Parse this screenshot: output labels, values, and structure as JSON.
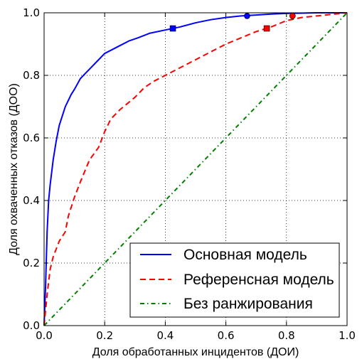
{
  "chart_data": {
    "type": "line",
    "xlabel": "Доля обработанных инцидентов (ДОИ)",
    "ylabel": "Доля охваченных отказов (ДОО)",
    "xlim": [
      0.0,
      1.0
    ],
    "ylim": [
      0.0,
      1.0
    ],
    "x_ticks": [
      "0.0",
      "0.2",
      "0.4",
      "0.6",
      "0.8",
      "1.0"
    ],
    "y_ticks": [
      "0.0",
      "0.2",
      "0.4",
      "0.6",
      "0.8",
      "1.0"
    ],
    "grid": true,
    "legend_position": "lower-right",
    "series": [
      {
        "name": "Основная модель",
        "color": "#0000ff",
        "line_style": "solid",
        "x": [
          0.0,
          0.005,
          0.01,
          0.015,
          0.02,
          0.03,
          0.04,
          0.05,
          0.06,
          0.07,
          0.08,
          0.09,
          0.1,
          0.12,
          0.14,
          0.16,
          0.18,
          0.2,
          0.22,
          0.25,
          0.28,
          0.31,
          0.35,
          0.4,
          0.45,
          0.5,
          0.55,
          0.6,
          0.65,
          0.7,
          0.75,
          0.8,
          0.85,
          0.9,
          0.95,
          1.0
        ],
        "y": [
          0.0,
          0.13,
          0.3,
          0.4,
          0.45,
          0.53,
          0.59,
          0.64,
          0.67,
          0.7,
          0.72,
          0.74,
          0.755,
          0.79,
          0.81,
          0.83,
          0.85,
          0.87,
          0.88,
          0.895,
          0.91,
          0.92,
          0.935,
          0.945,
          0.955,
          0.968,
          0.978,
          0.985,
          0.99,
          0.993,
          0.996,
          0.998,
          0.999,
          1.0,
          1.0,
          1.0
        ]
      },
      {
        "name": "Референсная модель",
        "color": "#ff0000",
        "line_style": "dashed",
        "x": [
          0.0,
          0.01,
          0.02,
          0.03,
          0.05,
          0.07,
          0.08,
          0.1,
          0.12,
          0.15,
          0.18,
          0.2,
          0.22,
          0.25,
          0.3,
          0.33,
          0.36,
          0.4,
          0.45,
          0.5,
          0.55,
          0.6,
          0.65,
          0.7,
          0.75,
          0.8,
          0.85,
          0.9,
          0.95,
          1.0
        ],
        "y": [
          0.0,
          0.1,
          0.18,
          0.22,
          0.27,
          0.3,
          0.35,
          0.41,
          0.46,
          0.53,
          0.57,
          0.62,
          0.66,
          0.69,
          0.73,
          0.76,
          0.78,
          0.8,
          0.825,
          0.85,
          0.875,
          0.9,
          0.92,
          0.94,
          0.955,
          0.975,
          0.985,
          0.99,
          0.995,
          1.0
        ]
      },
      {
        "name": "Без ранжирования",
        "color": "#008000",
        "line_style": "dashdot",
        "x": [
          0.0,
          1.0
        ],
        "y": [
          0.0,
          1.0
        ]
      }
    ],
    "markers": [
      {
        "series": "Основная модель",
        "shape": "square",
        "color": "#0000ff",
        "x": 0.425,
        "y": 0.95
      },
      {
        "series": "Основная модель",
        "shape": "circle",
        "color": "#0000ff",
        "x": 0.67,
        "y": 0.99
      },
      {
        "series": "Референсная модель",
        "shape": "square",
        "color": "#ff0000",
        "x": 0.735,
        "y": 0.95
      },
      {
        "series": "Референсная модель",
        "shape": "circle",
        "color": "#ff0000",
        "x": 0.82,
        "y": 0.99
      }
    ]
  }
}
